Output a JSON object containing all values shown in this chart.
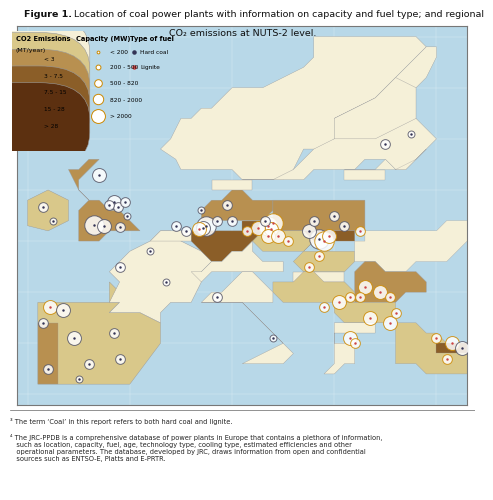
{
  "title_bold": "Figure 1.",
  "title_normal": " Location of coal power plants with information on capacity and fuel type; and regional\nCO₂ emissions at NUTS-2 level.",
  "bg_color": "#ffffff",
  "map_bg": "#b8d8e8",
  "land_light": "#f0ead0",
  "land_medium": "#d4bc82",
  "land_dark": "#8b5e28",
  "border_color": "#aaaaaa",
  "co2_labels": [
    "< 3",
    "3 - 7.5",
    "7.5 - 15",
    "15 - 28",
    "> 28"
  ],
  "co2_colors": [
    "#f5f0d8",
    "#d9c88a",
    "#b89050",
    "#8b5e28",
    "#5c3010"
  ],
  "cap_labels": [
    "< 200",
    "200 - 500",
    "500 - 820",
    "820 - 2000",
    "> 2000"
  ],
  "cap_ms": [
    3,
    5,
    7,
    10,
    14
  ],
  "fuel_hard_color": "#333355",
  "fuel_lignite_color": "#cc4444",
  "circle_fill": "#ffffff",
  "circle_edge_hard": "#555555",
  "circle_edge_lignite": "#cc8800",
  "footnote1": "³ The term ‘Coal’ in this report refers to both hard coal and lignite.",
  "footnote2": "⁴ The JRC-PPDB is a comprehensive database of power plants in Europe that contains a plethora of information,\n   such as location, capacity, fuel, age, technology type, cooling type, estimated efficiencies and other\n   operational parameters. The database, developed by JRC, draws information from open and confidential\n   sources such as ENTSO-E, Platts and E-PRTR.",
  "map_xlim": [
    -11,
    33
  ],
  "map_ylim": [
    34,
    71
  ],
  "outside_color": "#d0d0d0"
}
